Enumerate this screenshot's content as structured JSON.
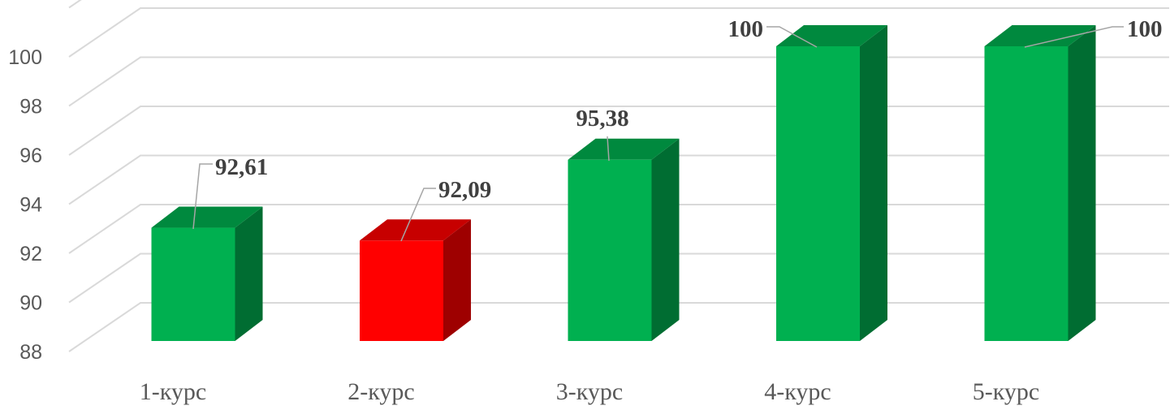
{
  "chart_data": {
    "type": "bar",
    "categories": [
      "1-курс",
      "2-курс",
      "3-курс",
      "4-курс",
      "5-курс"
    ],
    "values": [
      92.61,
      92.09,
      95.38,
      100,
      100
    ],
    "data_labels": [
      "92,61",
      "92,09",
      "95,38",
      "100",
      "100"
    ],
    "colors": [
      "#00b050",
      "#ff0000",
      "#00b050",
      "#00b050",
      "#00b050"
    ],
    "ylim": [
      88,
      100
    ],
    "yticks": [
      88,
      90,
      92,
      94,
      96,
      98,
      100
    ],
    "ytick_labels": [
      "88",
      "90",
      "92",
      "94",
      "96",
      "98",
      "100"
    ],
    "grid": true,
    "style": "3d-column",
    "title": "",
    "xlabel": "",
    "ylabel": ""
  }
}
